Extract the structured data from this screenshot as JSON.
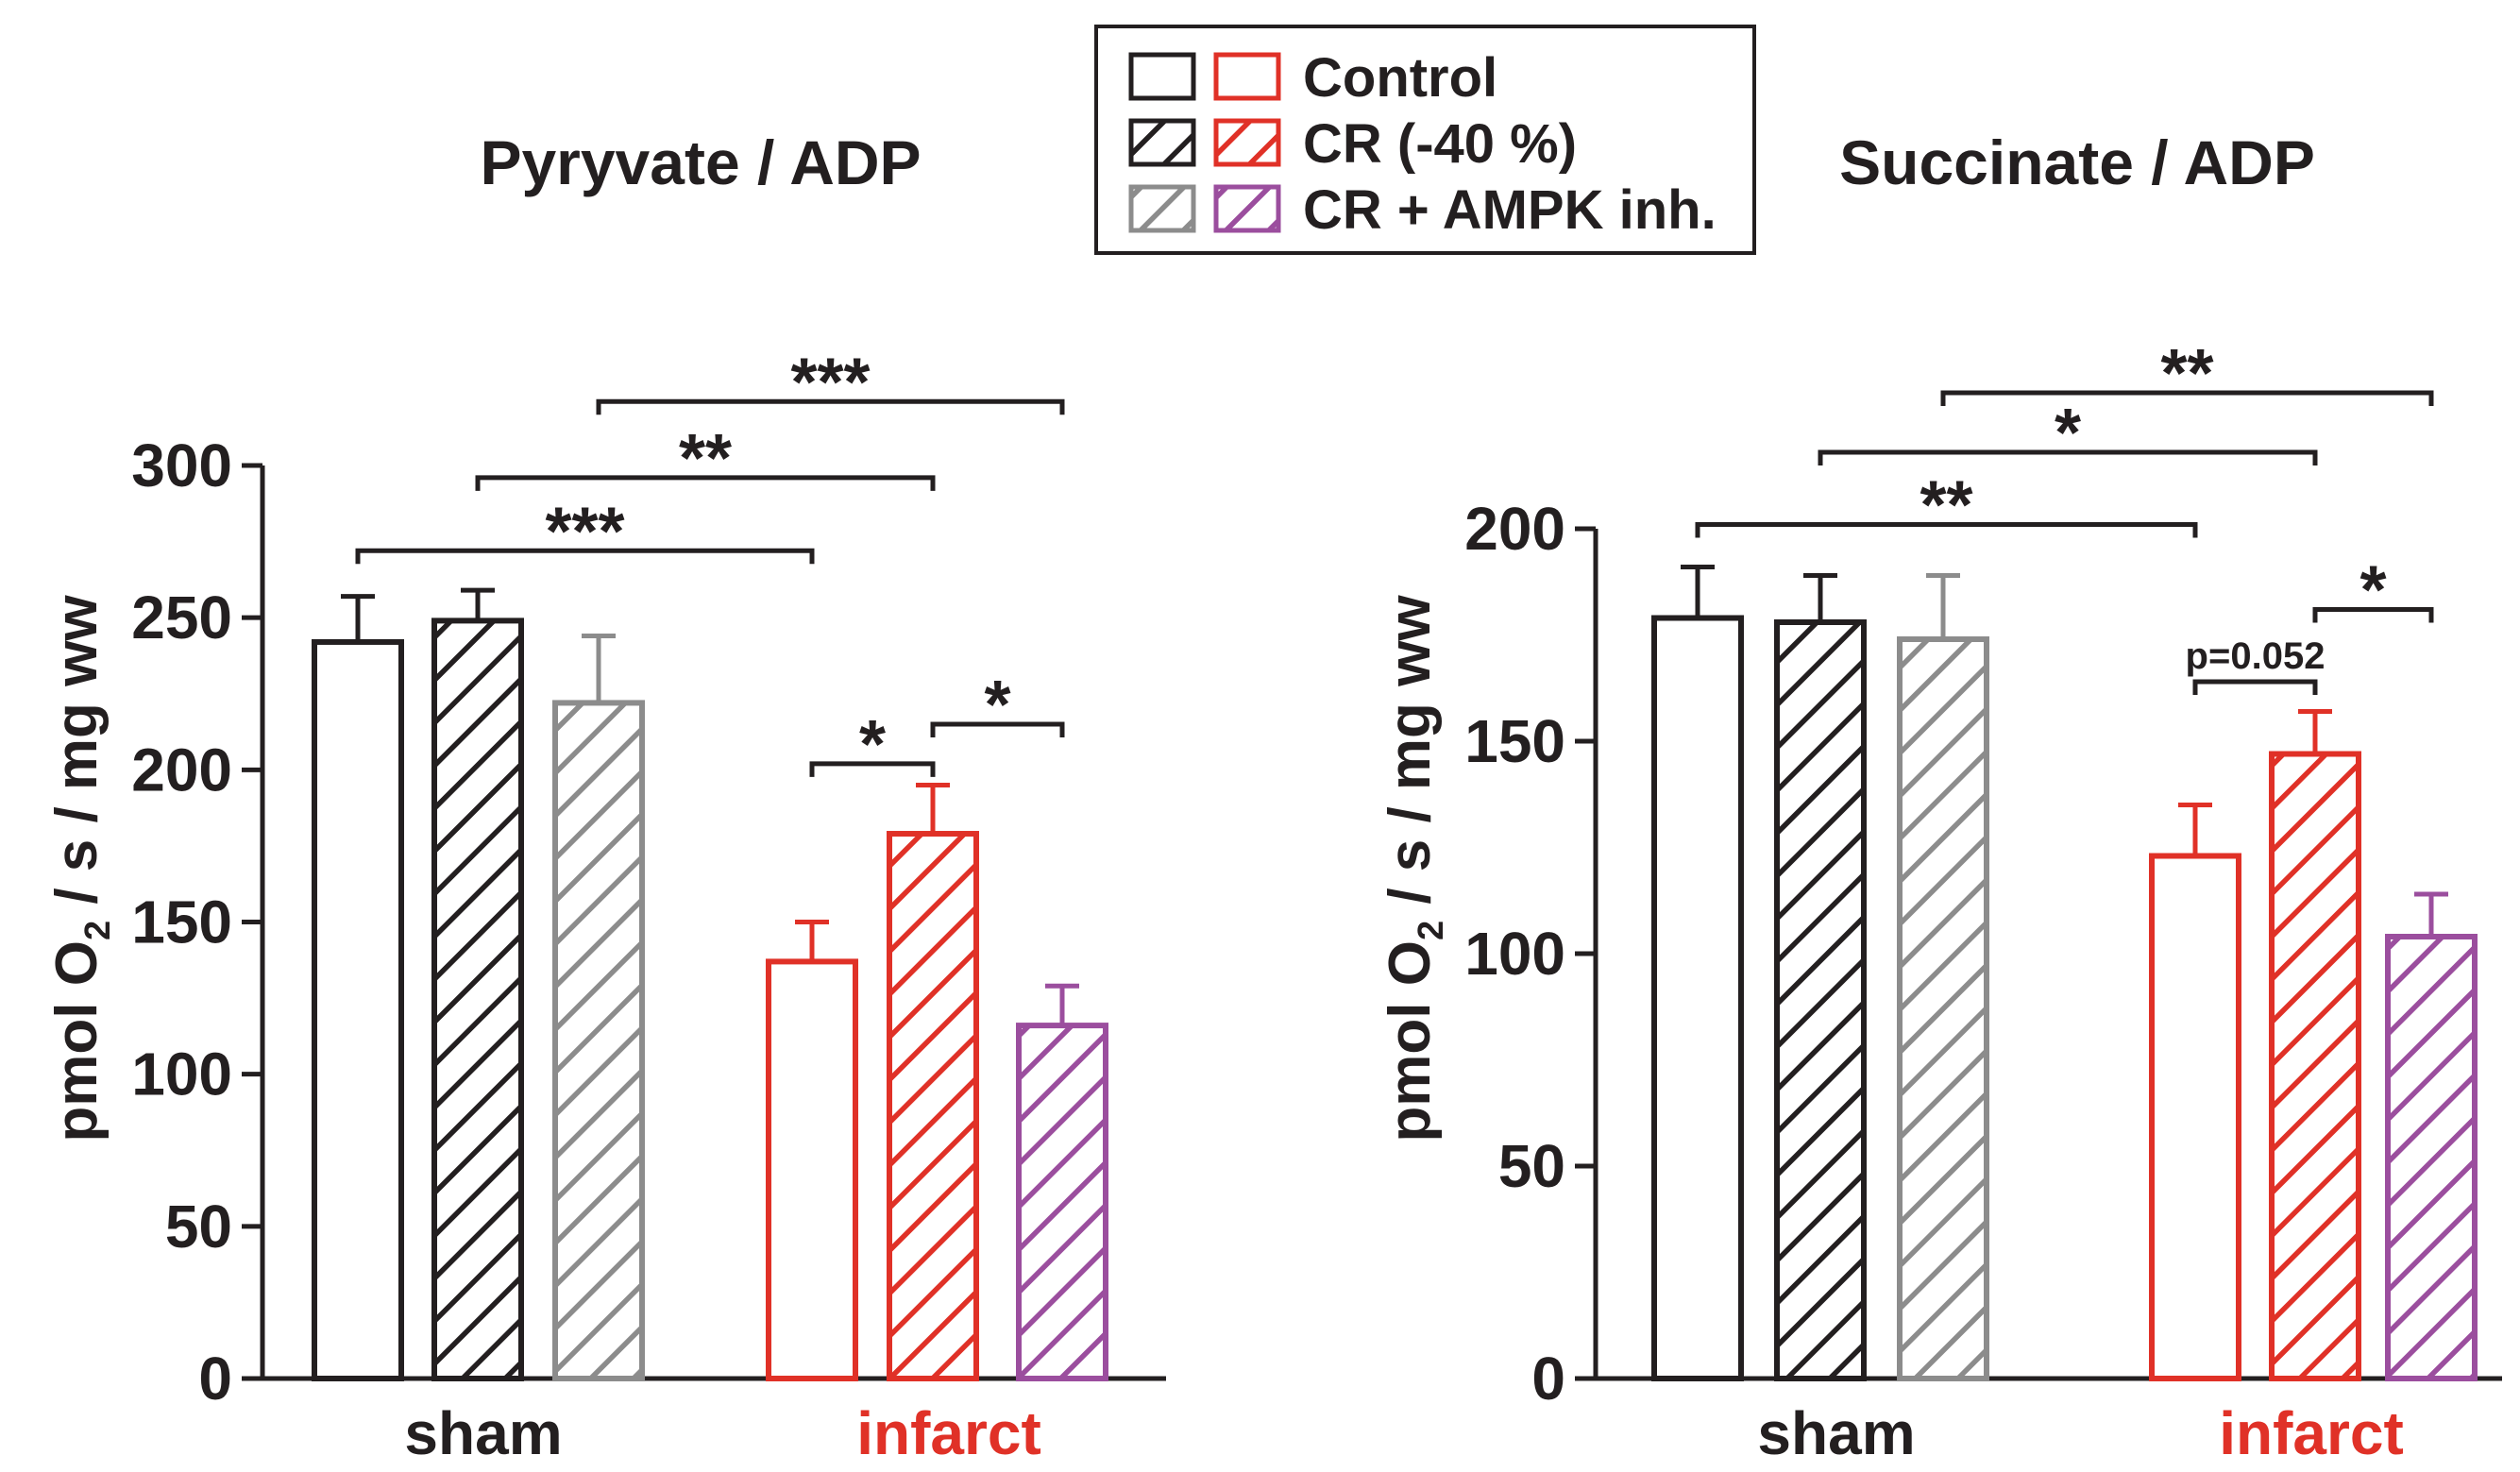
{
  "colors": {
    "control_sham": "#231f20",
    "cr_sham": "#231f20",
    "ampk_sham": "#8c8c8c",
    "control_infarct": "#e03127",
    "cr_infarct": "#e03127",
    "ampk_infarct": "#9b4e9e",
    "text": "#231f20",
    "infarct_label": "#e03127"
  },
  "legend": {
    "entries": [
      {
        "label": "Control",
        "pattern": "open"
      },
      {
        "label": "CR (-40 %)",
        "pattern": "hatched"
      },
      {
        "label": "CR + AMPK inh.",
        "pattern": "hatched"
      }
    ]
  },
  "chart_data": [
    {
      "type": "bar",
      "title": "Pyryvate / ADP",
      "ylabel": "pmol O2 / s / mg ww",
      "ylim": [
        0,
        300
      ],
      "yticks": [
        0,
        50,
        100,
        150,
        200,
        250,
        300
      ],
      "groups": [
        "sham",
        "infarct"
      ],
      "series": [
        {
          "name": "Control",
          "values": [
            242,
            137
          ],
          "errors": [
            15,
            13
          ]
        },
        {
          "name": "CR (-40 %)",
          "values": [
            249,
            179
          ],
          "errors": [
            10,
            16
          ]
        },
        {
          "name": "CR + AMPK inh.",
          "values": [
            222,
            116
          ],
          "errors": [
            22,
            13
          ]
        }
      ],
      "significance": [
        {
          "from": [
            0,
            0
          ],
          "to": [
            1,
            0
          ],
          "label": "***",
          "level": 272
        },
        {
          "from": [
            0,
            1
          ],
          "to": [
            1,
            1
          ],
          "label": "**",
          "level": 296
        },
        {
          "from": [
            0,
            2
          ],
          "to": [
            1,
            2
          ],
          "label": "***",
          "level": 321
        },
        {
          "from": [
            1,
            0
          ],
          "to": [
            1,
            1
          ],
          "label": "*",
          "level": 202
        },
        {
          "from": [
            1,
            1
          ],
          "to": [
            1,
            2
          ],
          "label": "*",
          "level": 215
        }
      ]
    },
    {
      "type": "bar",
      "title": "Succinate / ADP",
      "ylabel": "pmol O2 / s / mg ww",
      "ylim": [
        0,
        200
      ],
      "yticks": [
        0,
        50,
        100,
        150,
        200
      ],
      "groups": [
        "sham",
        "infarct"
      ],
      "series": [
        {
          "name": "Control",
          "values": [
            179,
            123
          ],
          "errors": [
            12,
            12
          ]
        },
        {
          "name": "CR (-40 %)",
          "values": [
            178,
            147
          ],
          "errors": [
            11,
            10
          ]
        },
        {
          "name": "CR + AMPK inh.",
          "values": [
            174,
            104
          ],
          "errors": [
            15,
            10
          ]
        }
      ],
      "significance": [
        {
          "from": [
            0,
            0
          ],
          "to": [
            1,
            0
          ],
          "label": "**",
          "level": 201
        },
        {
          "from": [
            0,
            1
          ],
          "to": [
            1,
            1
          ],
          "label": "*",
          "level": 218
        },
        {
          "from": [
            0,
            2
          ],
          "to": [
            1,
            2
          ],
          "label": "**",
          "level": 232
        },
        {
          "from": [
            1,
            0
          ],
          "to": [
            1,
            1
          ],
          "label": "p=0.052",
          "level": 164
        },
        {
          "from": [
            1,
            1
          ],
          "to": [
            1,
            2
          ],
          "label": "*",
          "level": 181
        }
      ]
    }
  ]
}
